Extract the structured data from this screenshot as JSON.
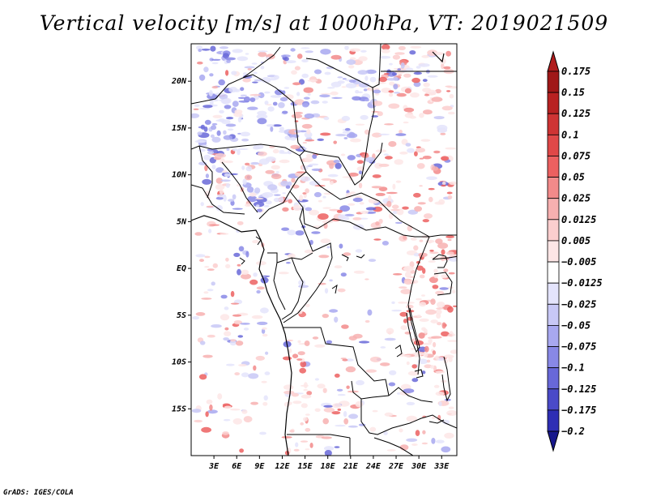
{
  "title": "Vertical velocity [m/s] at 1000hPa, VT: 2019021509",
  "credit": "GrADS: IGES/COLA",
  "map": {
    "lon_range": [
      0,
      35
    ],
    "lat_range": [
      -20,
      24
    ],
    "lat_ticks": [
      {
        "label": "20N",
        "value": 20
      },
      {
        "label": "15N",
        "value": 15
      },
      {
        "label": "10N",
        "value": 10
      },
      {
        "label": "5N",
        "value": 5
      },
      {
        "label": "EQ",
        "value": 0
      },
      {
        "label": "5S",
        "value": -5
      },
      {
        "label": "10S",
        "value": -10
      },
      {
        "label": "15S",
        "value": -15
      }
    ],
    "lon_ticks": [
      {
        "label": "3E",
        "value": 3
      },
      {
        "label": "6E",
        "value": 6
      },
      {
        "label": "9E",
        "value": 9
      },
      {
        "label": "12E",
        "value": 12
      },
      {
        "label": "15E",
        "value": 15
      },
      {
        "label": "18E",
        "value": 18
      },
      {
        "label": "21E",
        "value": 21
      },
      {
        "label": "24E",
        "value": 24
      },
      {
        "label": "27E",
        "value": 27
      },
      {
        "label": "30E",
        "value": 30
      },
      {
        "label": "33E",
        "value": 33
      }
    ]
  },
  "colorbar": {
    "levels": [
      {
        "label": "0.175",
        "color": "#a01818"
      },
      {
        "label": "0.15",
        "color": "#b82222"
      },
      {
        "label": "0.125",
        "color": "#cf3434"
      },
      {
        "label": "0.1",
        "color": "#e04848"
      },
      {
        "label": "0.075",
        "color": "#ec6060"
      },
      {
        "label": "0.05",
        "color": "#f28a8a"
      },
      {
        "label": "0.025",
        "color": "#f7b0b0"
      },
      {
        "label": "0.0125",
        "color": "#fbcece"
      },
      {
        "label": "0.005",
        "color": "#fde6e6"
      },
      {
        "label": "−0.005",
        "color": "#ffffff"
      },
      {
        "label": "−0.0125",
        "color": "#e4e4fc"
      },
      {
        "label": "−0.025",
        "color": "#c8c8f6"
      },
      {
        "label": "−0.05",
        "color": "#a8a8f0"
      },
      {
        "label": "−0.075",
        "color": "#8888e6"
      },
      {
        "label": "−0.1",
        "color": "#6868d8"
      },
      {
        "label": "−0.125",
        "color": "#4a4ac8"
      },
      {
        "label": "−0.175",
        "color": "#2e2eb4"
      },
      {
        "label": "−0.2",
        "color": "#1a1a9a"
      }
    ],
    "top_color": "#b01c1c",
    "bottom_color": "#18188c"
  }
}
